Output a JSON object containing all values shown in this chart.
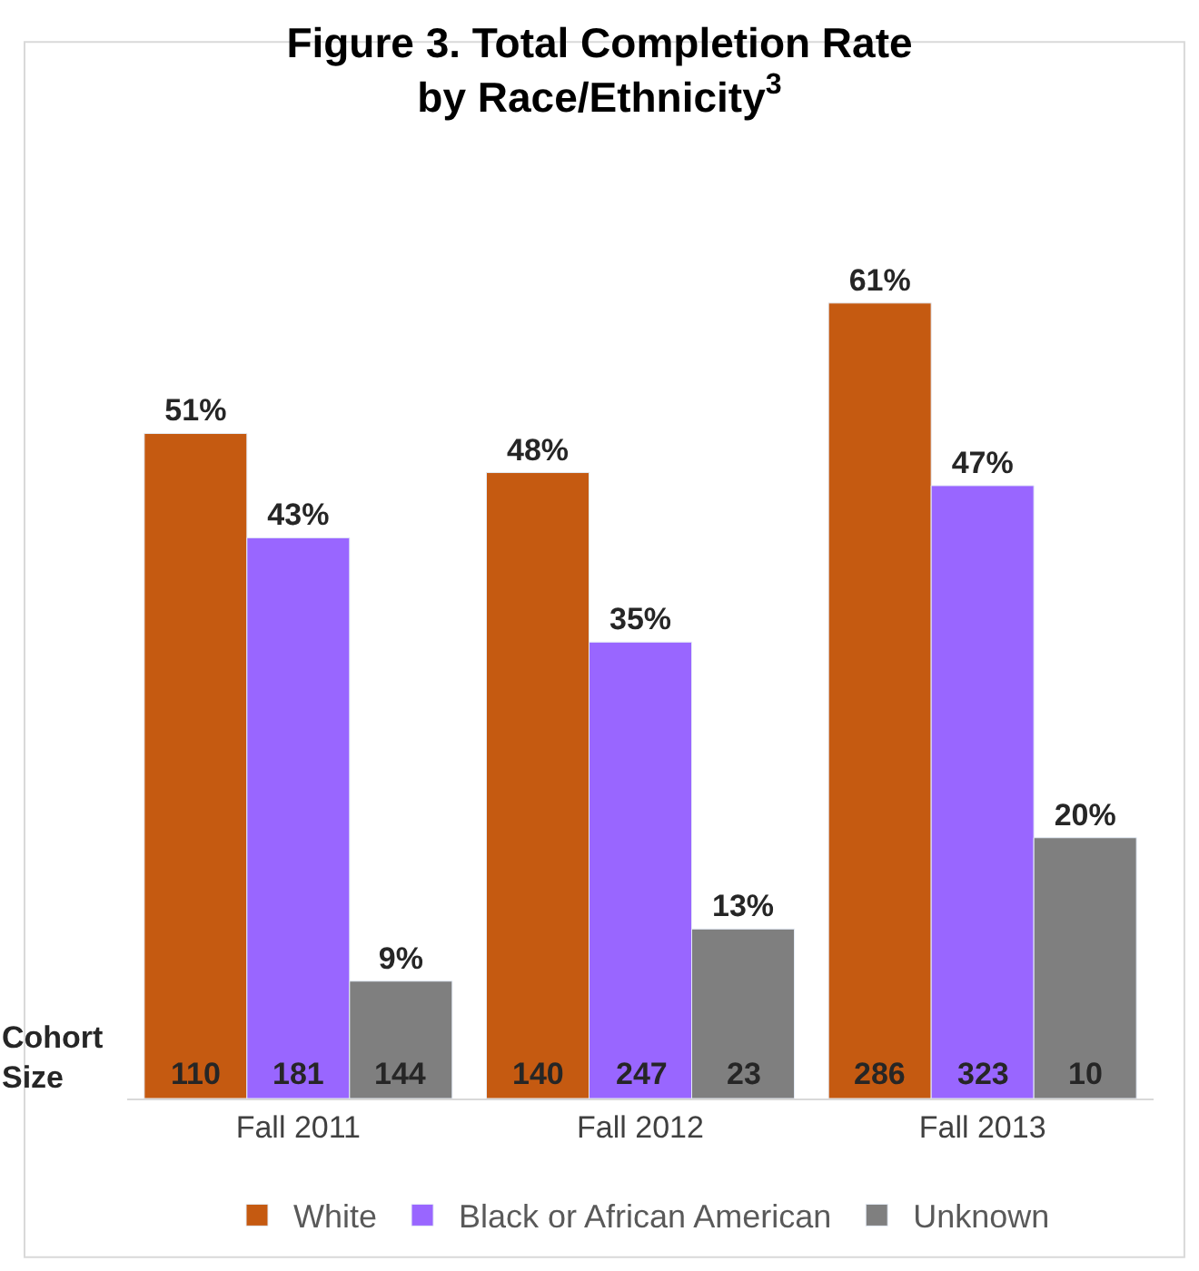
{
  "chart_data": {
    "type": "bar",
    "title": "Figure 3. Total Completion Rate\nby Race/Ethnicity$^{3}$",
    "categories": [
      "Fall 2011",
      "Fall 2012",
      "Fall 2013"
    ],
    "series": [
      {
        "name": "White",
        "color": "#c55a11",
        "values": [
          51,
          48,
          61
        ],
        "value_labels": [
          "51%",
          "48%",
          "61%"
        ]
      },
      {
        "name": "Black or African American",
        "color": "#9966ff",
        "values": [
          43,
          35,
          47
        ],
        "value_labels": [
          "43%",
          "35%",
          "47%"
        ]
      },
      {
        "name": "Unknown",
        "color": "#7f7f7f",
        "values": [
          9,
          13,
          20
        ],
        "value_labels": [
          "9%",
          "13%",
          "20%"
        ]
      }
    ],
    "annotations": [
      "Cohort\nSize",
      "110",
      "181",
      "144",
      "140",
      "247",
      "23",
      "286",
      "323",
      "10"
    ],
    "legend": "bottom"
  }
}
